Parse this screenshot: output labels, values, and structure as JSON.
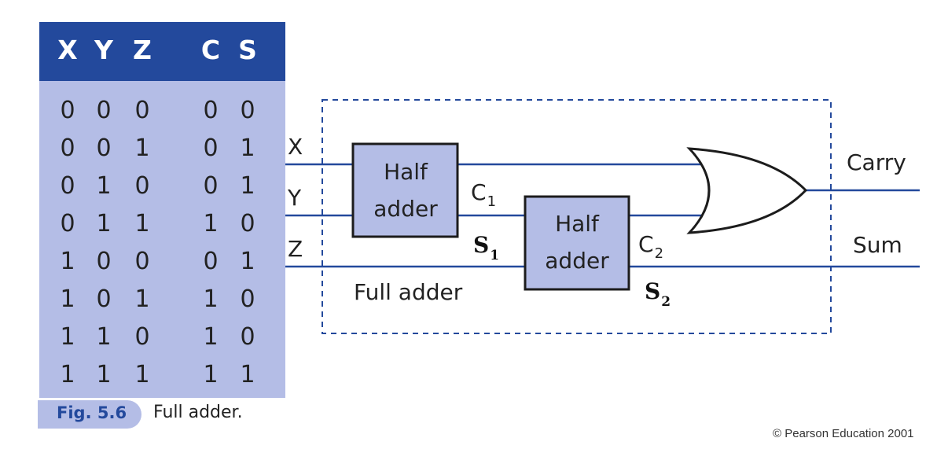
{
  "truth_table": {
    "headers": [
      "X",
      "Y",
      "Z",
      "C",
      "S"
    ],
    "rows": [
      [
        "0",
        "0",
        "0",
        "0",
        "0"
      ],
      [
        "0",
        "0",
        "1",
        "0",
        "1"
      ],
      [
        "0",
        "1",
        "0",
        "0",
        "1"
      ],
      [
        "0",
        "1",
        "1",
        "1",
        "0"
      ],
      [
        "1",
        "0",
        "0",
        "0",
        "1"
      ],
      [
        "1",
        "0",
        "1",
        "1",
        "0"
      ],
      [
        "1",
        "1",
        "0",
        "1",
        "0"
      ],
      [
        "1",
        "1",
        "1",
        "1",
        "1"
      ]
    ]
  },
  "circuit": {
    "inputs": {
      "x": "X",
      "y": "Y",
      "z": "Z"
    },
    "half_adder_1": {
      "line1": "Half",
      "line2": "adder"
    },
    "half_adder_2": {
      "line1": "Half",
      "line2": "adder"
    },
    "c1": {
      "main": "C",
      "sub": "1"
    },
    "s1": {
      "main": "S",
      "sub": "1"
    },
    "c2": {
      "main": "C",
      "sub": "2"
    },
    "s2": {
      "main": "S",
      "sub": "2"
    },
    "full_adder_label": "Full adder",
    "outputs": {
      "carry": "Carry",
      "sum": "Sum"
    }
  },
  "caption": {
    "figure_number": "Fig. 5.6",
    "text": "Full adder."
  },
  "copyright": "© Pearson Education 2001",
  "colors": {
    "table_header": "#23499c",
    "table_body": "#b4bde6",
    "wire": "#23499c",
    "box_fill": "#b4bde6",
    "dashed_border": "#23499c"
  }
}
